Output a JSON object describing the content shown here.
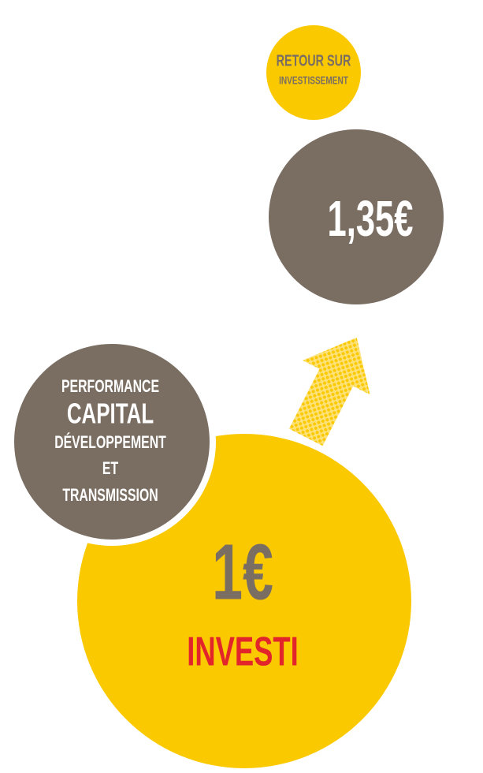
{
  "return_bubble": {
    "lines": [
      "RETOUR SUR",
      "INVESTISSEMENT"
    ]
  },
  "return_value": "1,35€",
  "performance_bubble": {
    "lines": [
      "PERFORMANCE",
      "CAPITAL",
      "DÉVELOPPEMENT",
      "ET",
      "TRANSMISSION"
    ]
  },
  "invested_bubble": {
    "value": "1€",
    "label": "INVESTI"
  }
}
